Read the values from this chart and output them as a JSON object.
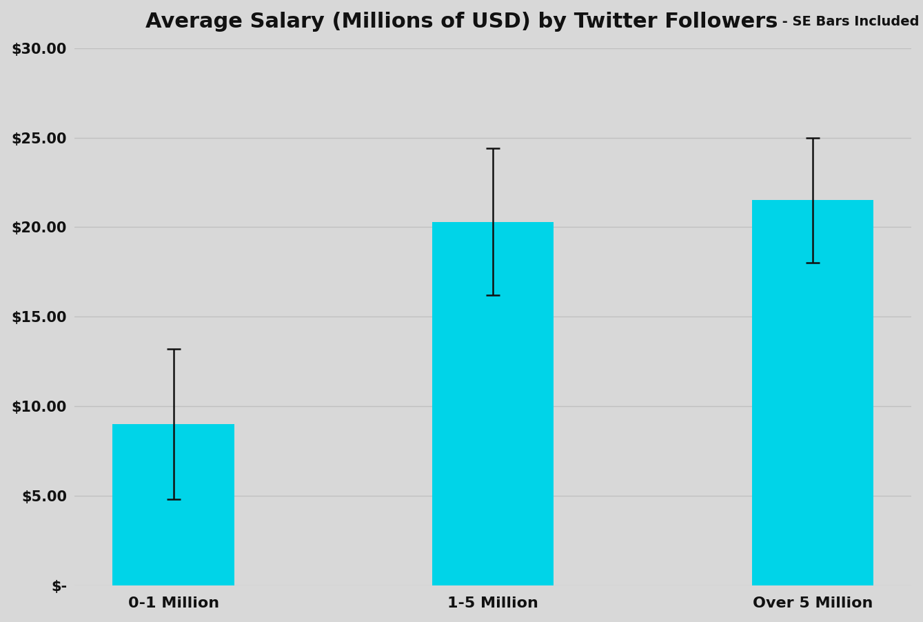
{
  "categories": [
    "0-1 Million",
    "1-5 Million",
    "Over 5 Million"
  ],
  "values": [
    9.0,
    20.3,
    21.5
  ],
  "errors_upper": [
    4.2,
    4.1,
    3.5
  ],
  "errors_lower": [
    4.2,
    4.1,
    3.5
  ],
  "bar_color": "#00D4E8",
  "error_color": "#111111",
  "title_main": "Average Salary (Millions of USD) by Twitter Followers",
  "title_suffix": " - SE Bars Included",
  "title_main_fontsize": 22,
  "title_suffix_fontsize": 14,
  "background_color": "#d8d8d8",
  "ylim": [
    0,
    30
  ],
  "yticks": [
    0,
    5,
    10,
    15,
    20,
    25,
    30
  ],
  "ytick_labels": [
    "$-",
    "$5.00",
    "$10.00",
    "$15.00",
    "$20.00",
    "$25.00",
    "$30.00"
  ],
  "grid_color": "#c0c0c0",
  "bar_width": 0.38,
  "capsize": 7,
  "elinewidth": 1.8,
  "capthick": 1.8
}
